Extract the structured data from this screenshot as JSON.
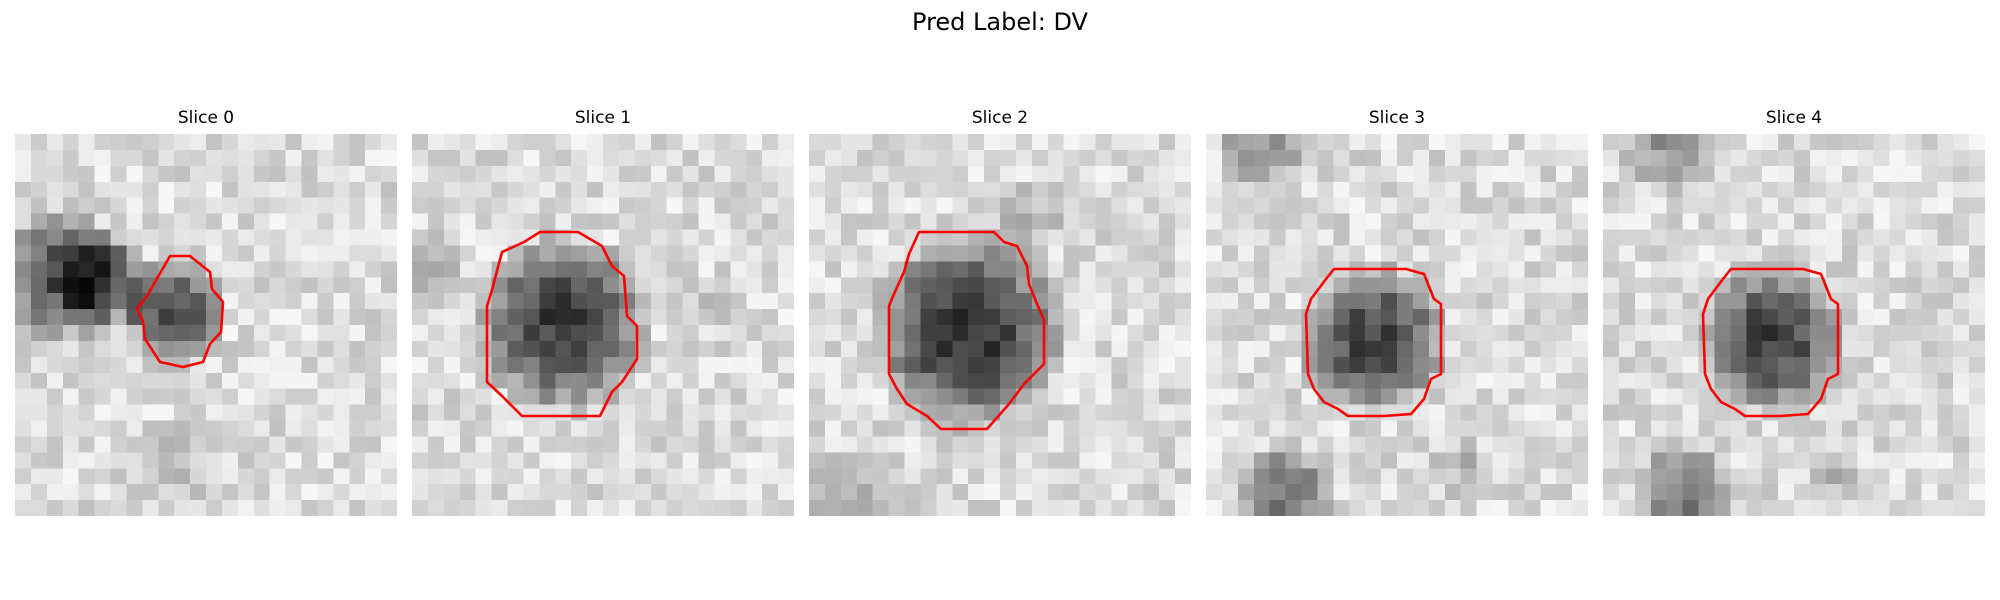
{
  "figure": {
    "suptitle": "Pred Label: DV"
  },
  "slices": [
    {
      "title": "Slice 0"
    },
    {
      "title": "Slice 1"
    },
    {
      "title": "Slice 2"
    },
    {
      "title": "Slice 3"
    },
    {
      "title": "Slice 4"
    }
  ],
  "style": {
    "contour_color": "#ff0000",
    "colormap": "grayscale"
  }
}
